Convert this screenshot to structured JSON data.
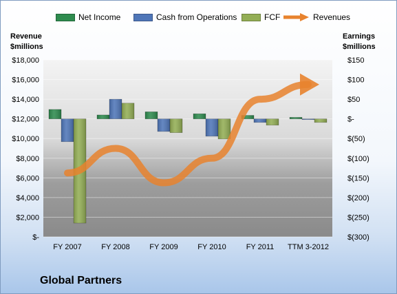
{
  "legend": {
    "net_income": "Net Income",
    "cfo": "Cash from Operations",
    "fcf": "FCF",
    "revenues": "Revenues"
  },
  "axis": {
    "left_title_1": "Revenue",
    "left_title_2": "$millions",
    "right_title_1": "Earnings",
    "right_title_2": "$millions"
  },
  "company_name": "Global Partners",
  "colors": {
    "net_income": "#2e8b4e",
    "cfo": "#4f76b8",
    "fcf": "#93ae55",
    "revenues": "#e8832e"
  },
  "chart_data": {
    "type": "bar",
    "categories": [
      "FY 2007",
      "FY 2008",
      "FY 2009",
      "FY 2010",
      "FY 2011",
      "TTM 3-2012"
    ],
    "series": [
      {
        "name": "Net Income",
        "axis": "right",
        "values": [
          24,
          10,
          18,
          13,
          9,
          4
        ]
      },
      {
        "name": "Cash from Operations",
        "axis": "right",
        "values": [
          -58,
          50,
          -32,
          -44,
          -9,
          -1
        ]
      },
      {
        "name": "FCF",
        "axis": "right",
        "values": [
          -265,
          40,
          -35,
          -51,
          -16,
          -9
        ]
      },
      {
        "name": "Revenues",
        "axis": "left",
        "type": "line",
        "values": [
          6500,
          9000,
          5500,
          8000,
          14000,
          15500
        ]
      }
    ],
    "y_left": {
      "min": 0,
      "max": 18000,
      "ticks": [
        0,
        2000,
        4000,
        6000,
        8000,
        10000,
        12000,
        14000,
        16000,
        18000
      ],
      "tick_labels": [
        "$-",
        "$2,000",
        "$4,000",
        "$6,000",
        "$8,000",
        "$10,000",
        "$12,000",
        "$14,000",
        "$16,000",
        "$18,000"
      ]
    },
    "y_right": {
      "min": -300,
      "max": 150,
      "ticks": [
        150,
        100,
        50,
        0,
        -50,
        -100,
        -150,
        -200,
        -250,
        -300
      ],
      "tick_labels": [
        "$150",
        "$100",
        "$50",
        "$-",
        "$(50)",
        "$(100)",
        "$(150)",
        "$(200)",
        "$(250)",
        "$(300)"
      ]
    }
  }
}
